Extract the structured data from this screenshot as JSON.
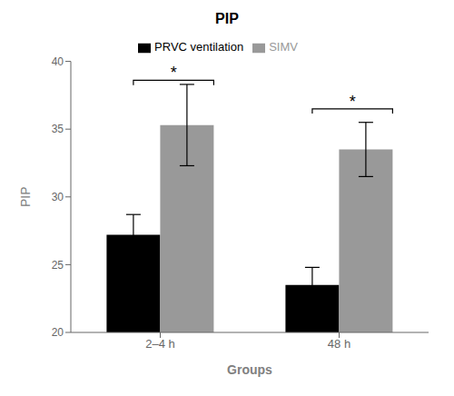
{
  "chart_data": {
    "type": "bar",
    "title": "PIP",
    "xlabel": "Groups",
    "ylabel": "PIP",
    "categories": [
      "2–4 h",
      "48 h"
    ],
    "series": [
      {
        "name": "PRVC ventilation",
        "color": "#000000",
        "values": [
          27.2,
          23.5
        ],
        "errors": [
          1.5,
          1.3
        ]
      },
      {
        "name": "SIMV",
        "color": "#999999",
        "values": [
          35.3,
          33.5
        ],
        "errors": [
          3.0,
          2.0
        ]
      }
    ],
    "ylim": [
      20,
      40
    ],
    "yticks": [
      20,
      25,
      30,
      35,
      40
    ],
    "grid": false,
    "legend": "top",
    "annotations": [
      {
        "text": "*",
        "category": "2–4 h",
        "y": 38.6
      },
      {
        "text": "*",
        "category": "48 h",
        "y": 36.5
      }
    ]
  }
}
